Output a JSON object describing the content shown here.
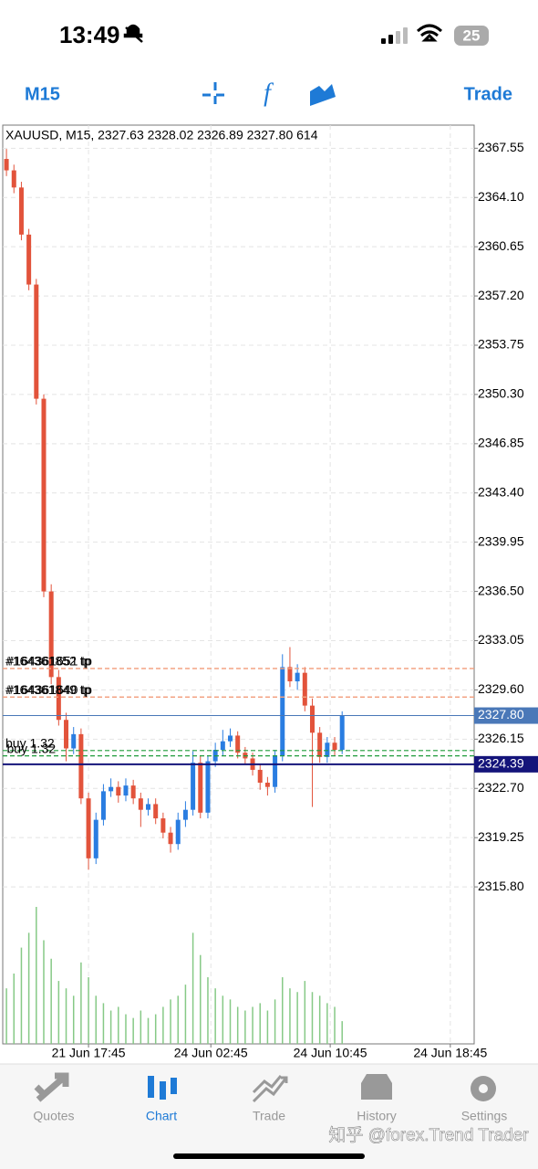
{
  "status_bar": {
    "time": "13:49",
    "battery": "25"
  },
  "toolbar": {
    "timeframe": "M15",
    "trade": "Trade"
  },
  "chart_data": {
    "type": "candlestick",
    "title": "XAUUSD, M15, 2327.63 2328.02 2326.89 2327.80 614",
    "open": [
      2366.8,
      2366.0,
      2364.8,
      2361.5,
      2358.0,
      2350.0,
      2336.5,
      2330.5,
      2327.5,
      2325.5,
      2326.5,
      2322.0,
      2317.8,
      2320.5,
      2322.5,
      2322.8,
      2322.2,
      2322.9,
      2322.0,
      2321.2,
      2321.6,
      2320.6,
      2319.6,
      2318.8,
      2320.5,
      2321.2,
      2324.5,
      2321.0,
      2324.6,
      2325.4,
      2326.0,
      2326.4,
      2325.2,
      2324.8,
      2324.0,
      2323.1,
      2322.8,
      2325.0,
      2331.2,
      2330.2,
      2330.8,
      2328.5,
      2326.6,
      2324.9,
      2325.9,
      2325.4
    ],
    "high": [
      2367.5,
      2366.4,
      2365.2,
      2361.9,
      2358.4,
      2350.3,
      2337.0,
      2331.0,
      2328.0,
      2327.0,
      2326.9,
      2322.4,
      2321.0,
      2323.0,
      2323.4,
      2323.2,
      2323.4,
      2323.3,
      2322.4,
      2322.0,
      2322.0,
      2321.0,
      2320.0,
      2321.0,
      2321.8,
      2325.3,
      2325.0,
      2325.0,
      2325.9,
      2326.8,
      2326.9,
      2326.7,
      2325.6,
      2325.2,
      2324.4,
      2323.5,
      2325.4,
      2332.1,
      2332.6,
      2331.4,
      2331.2,
      2329.0,
      2327.0,
      2326.3,
      2326.3,
      2328.1
    ],
    "low": [
      2365.6,
      2364.4,
      2361.1,
      2357.6,
      2349.6,
      2336.1,
      2330.0,
      2327.1,
      2324.6,
      2325.1,
      2321.6,
      2317.0,
      2317.4,
      2320.1,
      2322.1,
      2321.7,
      2321.8,
      2321.6,
      2320.0,
      2320.8,
      2320.2,
      2319.2,
      2318.2,
      2318.4,
      2320.0,
      2320.8,
      2320.6,
      2320.6,
      2324.2,
      2325.0,
      2325.6,
      2324.8,
      2324.4,
      2323.6,
      2322.6,
      2322.2,
      2322.4,
      2324.6,
      2329.8,
      2329.6,
      2328.1,
      2321.4,
      2324.5,
      2324.5,
      2325.0,
      2325.1
    ],
    "close": [
      2366.0,
      2364.8,
      2361.5,
      2358.0,
      2350.0,
      2336.5,
      2330.5,
      2327.5,
      2325.5,
      2326.5,
      2322.0,
      2317.8,
      2320.5,
      2322.5,
      2322.8,
      2322.2,
      2322.9,
      2322.0,
      2321.2,
      2321.6,
      2320.6,
      2319.6,
      2318.8,
      2320.5,
      2321.2,
      2324.5,
      2321.0,
      2324.6,
      2325.4,
      2326.0,
      2326.4,
      2325.2,
      2324.8,
      2324.0,
      2323.1,
      2322.8,
      2325.0,
      2331.2,
      2330.2,
      2330.8,
      2328.5,
      2326.6,
      2324.9,
      2325.9,
      2325.4,
      2327.8
    ],
    "volume": [
      1500,
      1900,
      2600,
      3000,
      3700,
      2800,
      2300,
      1700,
      1500,
      1300,
      2200,
      1800,
      1300,
      1100,
      900,
      1000,
      800,
      700,
      900,
      700,
      800,
      1000,
      1200,
      1300,
      1600,
      3000,
      2400,
      1800,
      1500,
      1300,
      1200,
      1000,
      900,
      1000,
      1100,
      900,
      1200,
      1800,
      1500,
      1400,
      1700,
      1400,
      1300,
      1100,
      1000,
      614
    ],
    "ylim": [
      2304.8,
      2369.17
    ],
    "yticks": [
      2367.55,
      {
        "value": 2364.1,
        "label": "2364.10"
      },
      2360.65,
      {
        "value": 2357.2,
        "label": "2357.20"
      },
      2353.75,
      {
        "value": 2350.3,
        "label": "2350.30"
      },
      2346.85,
      {
        "value": 2343.4,
        "label": "2343.40"
      },
      2339.95,
      {
        "value": 2336.5,
        "label": "2336.50"
      },
      2333.05,
      {
        "value": 2329.6,
        "label": "2329.60"
      },
      2326.15,
      {
        "value": 2322.7,
        "label": "2322.70"
      },
      2319.25,
      {
        "value": 2315.8,
        "label": "2315.80"
      }
    ],
    "xlim": [
      -0.5,
      62.7
    ],
    "xticks": [
      {
        "value": 11.0,
        "label": "21 Jun 17:45"
      },
      {
        "value": 27.4,
        "label": "24 Jun 02:45"
      },
      {
        "value": 43.4,
        "label": "24 Jun 10:45"
      },
      {
        "value": 59.5,
        "label": "24 Jun 18:45"
      }
    ],
    "grid": true,
    "colors": {
      "up": "#2a7de1",
      "down": "#e2533b",
      "volume": "#86c986"
    },
    "levels": [
      {
        "label": "#164361852 tp",
        "value": 2331.1,
        "color": "#f2a07e"
      },
      {
        "label": "#164361651 tp",
        "value": 2331.1,
        "color": "#f2a07e"
      },
      {
        "label": "#164361849 tp",
        "value": 2329.1,
        "color": "#f2a07e"
      },
      {
        "label": "#164361640 tp",
        "value": 2329.1,
        "color": "#f2a07e"
      },
      {
        "label": "buy 1.32",
        "value": 2325.35,
        "color": "#1e9b3a"
      },
      {
        "label": "buy 1.32",
        "value": 2324.98,
        "color": "#1e9b3a"
      }
    ],
    "price_markers": [
      {
        "value": 2327.8,
        "label": "2327.80",
        "color": "#4a78b8"
      },
      {
        "value": 2324.39,
        "label": "2324.39",
        "color": "#14147a"
      }
    ]
  },
  "tabs": [
    {
      "label": "Quotes"
    },
    {
      "label": "Chart"
    },
    {
      "label": "Trade"
    },
    {
      "label": "History"
    },
    {
      "label": "Settings"
    }
  ],
  "active_tab": 1,
  "watermark": "知乎 @forex.Trend Trader"
}
